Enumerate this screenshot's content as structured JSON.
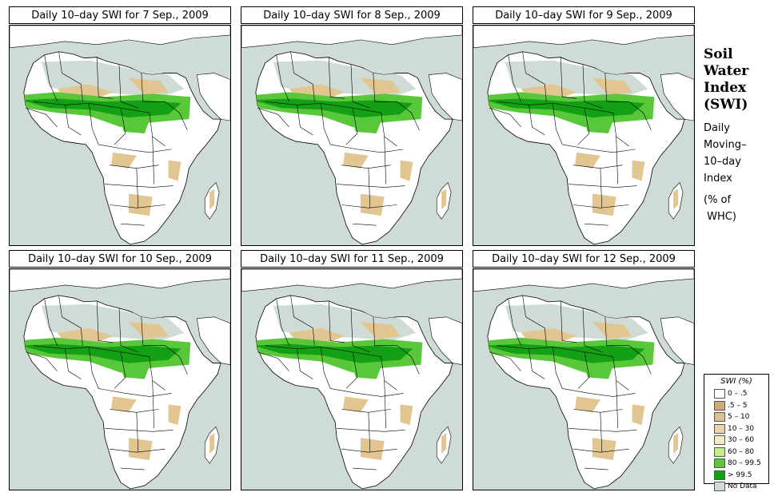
{
  "panels": [
    {
      "title": "Daily 10–day SWI for  7 Sep., 2009"
    },
    {
      "title": "Daily 10–day SWI for  8 Sep., 2009"
    },
    {
      "title": "Daily 10–day SWI for  9 Sep., 2009"
    },
    {
      "title": "Daily 10–day SWI for 10 Sep., 2009"
    },
    {
      "title": "Daily 10–day SWI for 11 Sep., 2009"
    },
    {
      "title": "Daily 10–day SWI for 12 Sep., 2009"
    }
  ],
  "side": {
    "title_lines": [
      "Soil",
      "Water",
      "Index",
      "(SWI)"
    ],
    "desc_lines": [
      "Daily",
      "Moving–",
      "10–day",
      "Index"
    ],
    "unit_lines": [
      "(% of",
      " WHC)"
    ]
  },
  "legend": {
    "title": "SWI (%)",
    "items": [
      {
        "label": "0 – .5",
        "color": "#ffffff"
      },
      {
        "label": ".5 – 5",
        "color": "#d2aa78"
      },
      {
        "label": "5 – 10",
        "color": "#dcc08e"
      },
      {
        "label": "10 – 30",
        "color": "#ead6a8"
      },
      {
        "label": "30 – 60",
        "color": "#f3ecc2"
      },
      {
        "label": "60 – 80",
        "color": "#c6ec8a"
      },
      {
        "label": "80 – 99.5",
        "color": "#58c83a"
      },
      {
        "label": "> 99.5",
        "color": "#14a014"
      },
      {
        "label": "No Data",
        "color": "#cfdbd5"
      }
    ]
  },
  "colors": {
    "ocean": "#cfdbd5",
    "land": "#ffffff",
    "nodata": "#cfdbd5",
    "dry": "#e2c692",
    "wet": "#58c83a",
    "wettest": "#14a014"
  }
}
